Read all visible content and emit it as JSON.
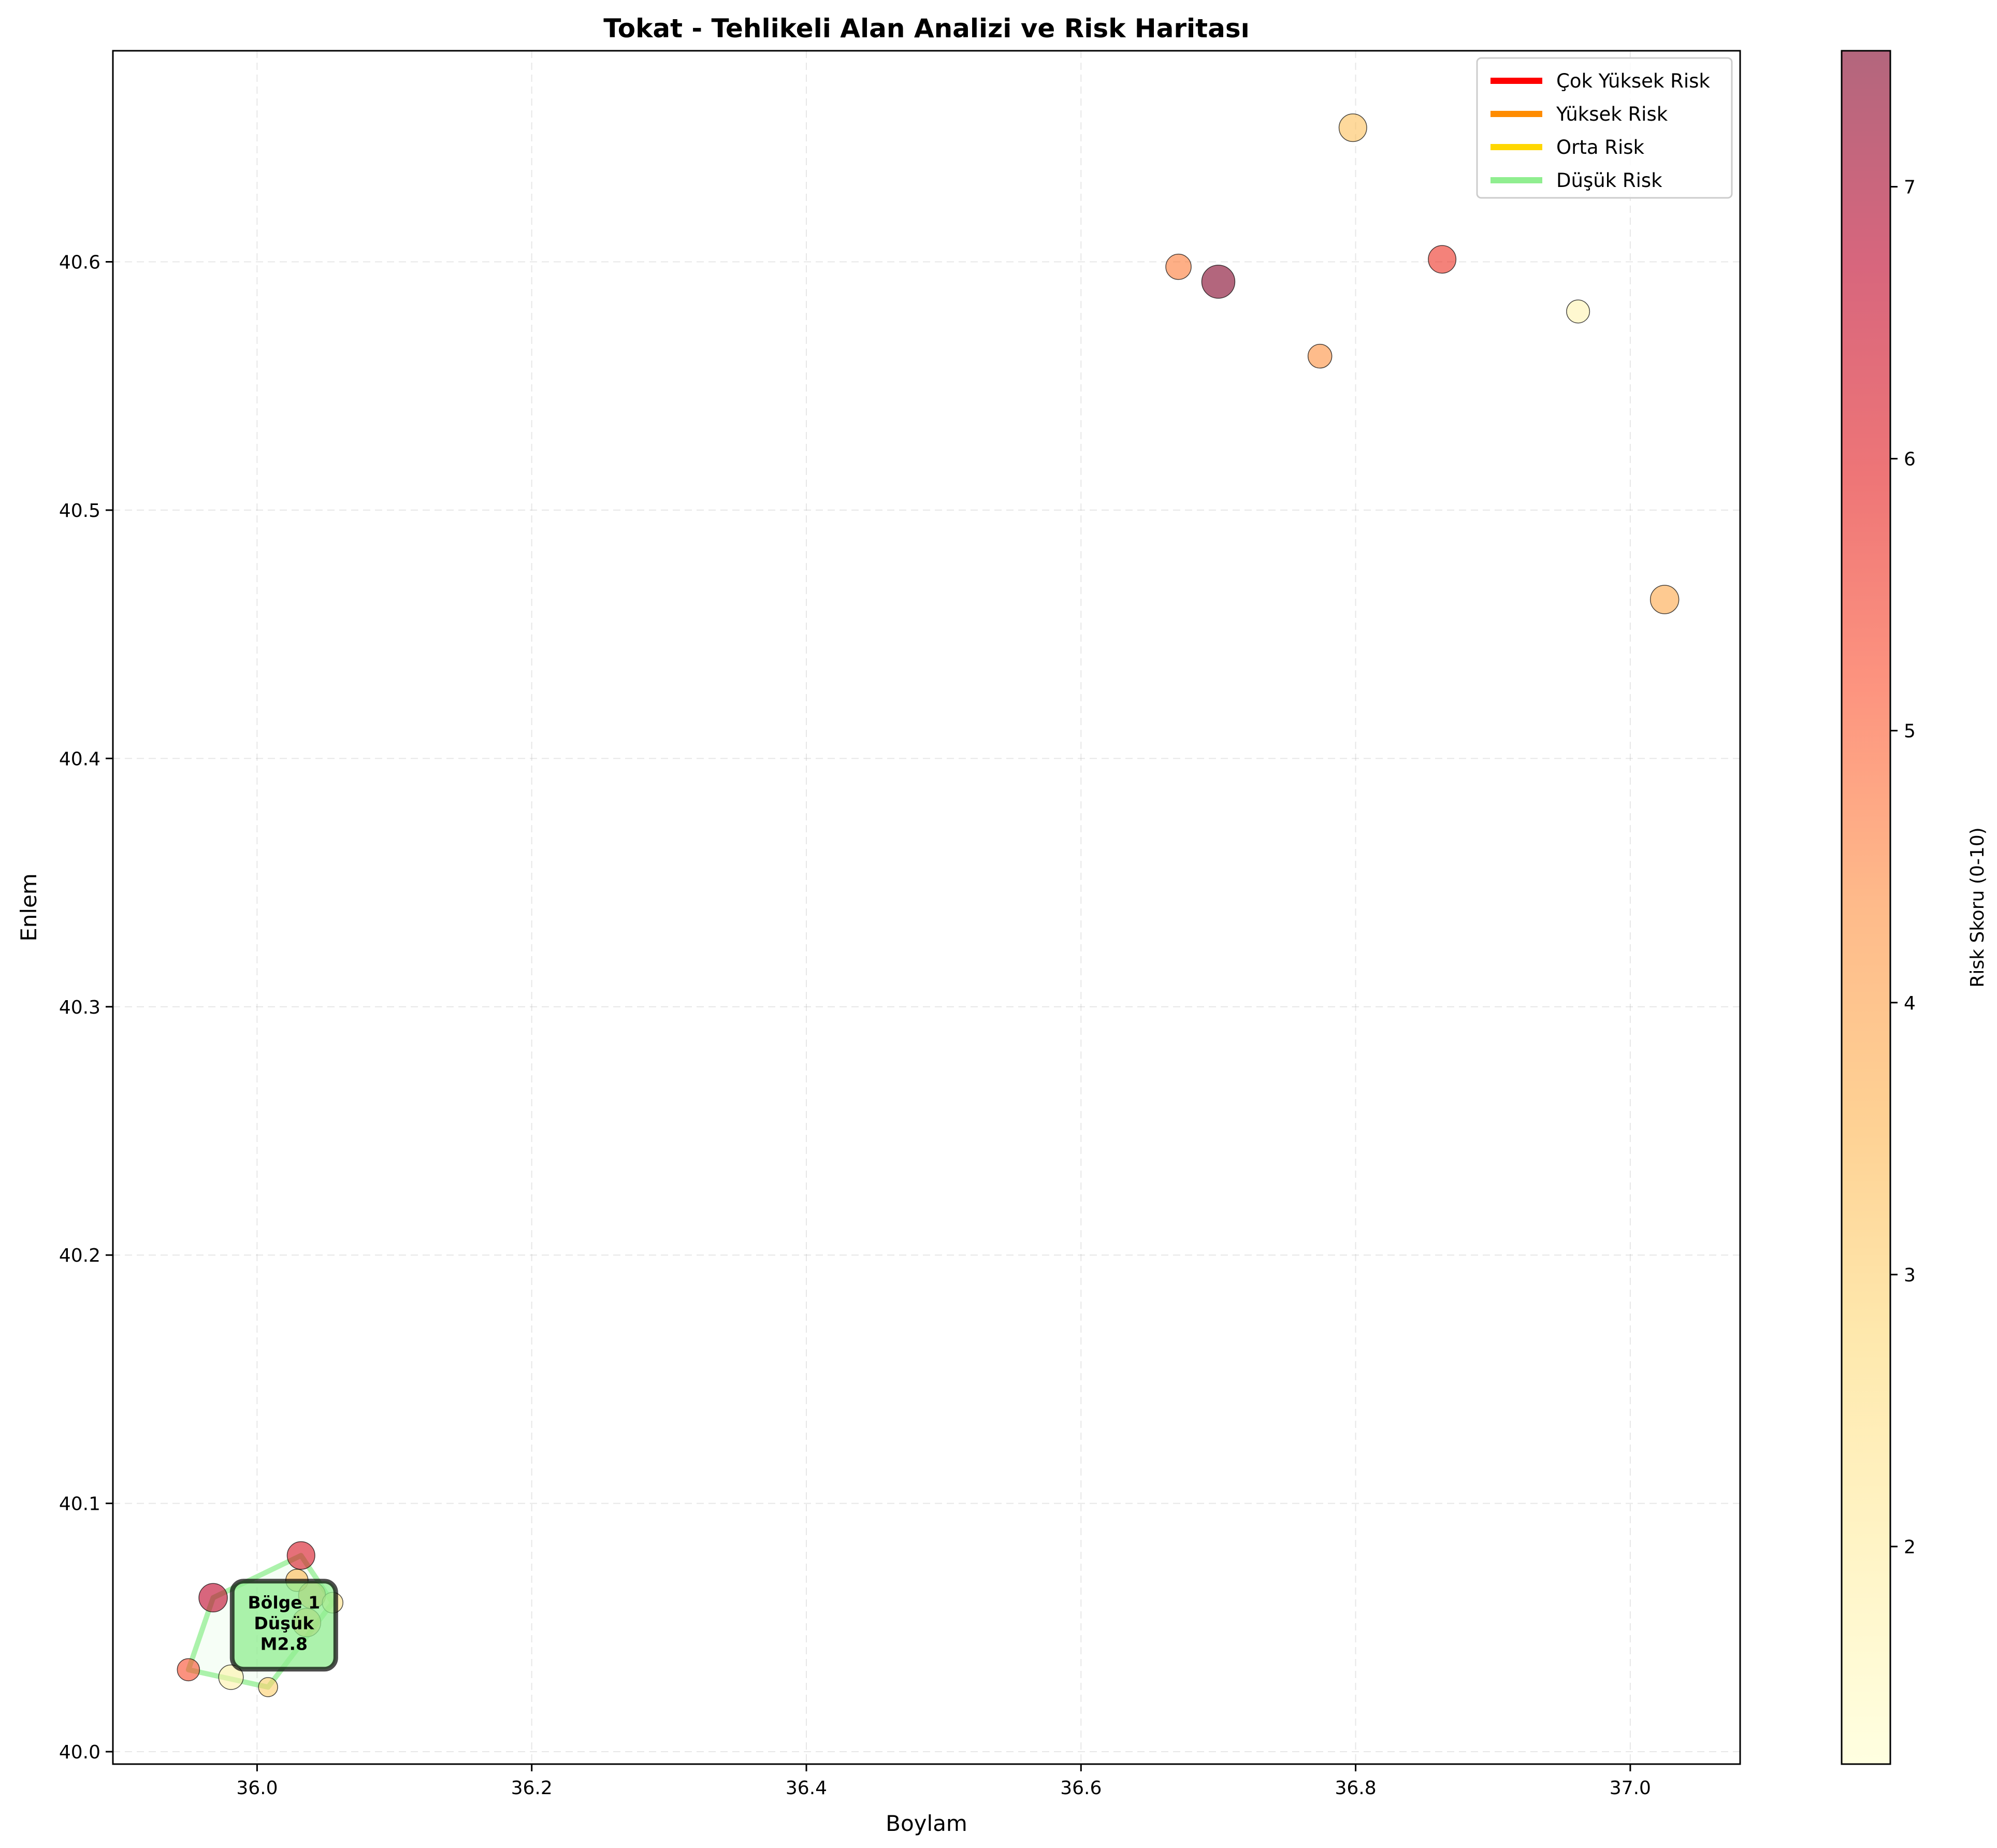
{
  "chart_data": {
    "type": "scatter",
    "title": "Tokat - Tehlikeli Alan Analizi ve Risk Haritası",
    "xlabel": "Boylam",
    "ylabel": "Enlem",
    "xlim": [
      35.895,
      37.08
    ],
    "ylim": [
      39.995,
      40.685
    ],
    "x_ticks": [
      "36.0",
      "36.2",
      "36.4",
      "36.6",
      "36.8",
      "37.0"
    ],
    "x_tick_values": [
      36.0,
      36.2,
      36.4,
      36.6,
      36.8,
      37.0
    ],
    "y_ticks": [
      "40.0",
      "40.1",
      "40.2",
      "40.3",
      "40.4",
      "40.5",
      "40.6"
    ],
    "y_tick_values": [
      40.0,
      40.1,
      40.2,
      40.3,
      40.4,
      40.5,
      40.6
    ],
    "grid": true,
    "legend_position": "top-right",
    "legend": [
      {
        "label": "Çok Yüksek Risk",
        "color": "#ff0000"
      },
      {
        "label": "Yüksek Risk",
        "color": "#ff8c00"
      },
      {
        "label": "Orta Risk",
        "color": "#ffd700"
      },
      {
        "label": "Düşük Risk",
        "color": "#90ee90"
      }
    ],
    "colorbar": {
      "label": "Risk Skoru (0-10)",
      "range": [
        1.2,
        7.5
      ],
      "ticks": [
        "2",
        "3",
        "4",
        "5",
        "6",
        "7"
      ],
      "tick_values": [
        2,
        3,
        4,
        5,
        6,
        7
      ],
      "colormap": "YlOrRd",
      "alpha": 0.6
    },
    "points": [
      {
        "x": 36.798,
        "y": 40.654,
        "risk": 3.3,
        "magnitude": 2.9
      },
      {
        "x": 36.671,
        "y": 40.598,
        "risk": 4.6,
        "magnitude": 2.6
      },
      {
        "x": 36.7,
        "y": 40.592,
        "risk": 7.5,
        "magnitude": 3.6
      },
      {
        "x": 36.863,
        "y": 40.601,
        "risk": 5.6,
        "magnitude": 2.9
      },
      {
        "x": 36.962,
        "y": 40.58,
        "risk": 1.7,
        "magnitude": 2.3
      },
      {
        "x": 36.774,
        "y": 40.562,
        "risk": 4.3,
        "magnitude": 2.4
      },
      {
        "x": 37.025,
        "y": 40.464,
        "risk": 3.8,
        "magnitude": 3.0
      },
      {
        "x": 36.032,
        "y": 40.079,
        "risk": 6.2,
        "magnitude": 2.9
      },
      {
        "x": 35.968,
        "y": 40.062,
        "risk": 6.7,
        "magnitude": 3.0
      },
      {
        "x": 36.029,
        "y": 40.069,
        "risk": 3.5,
        "magnitude": 2.2
      },
      {
        "x": 36.04,
        "y": 40.063,
        "risk": 4.5,
        "magnitude": 2.8
      },
      {
        "x": 36.055,
        "y": 40.06,
        "risk": 2.5,
        "magnitude": 2.0
      },
      {
        "x": 36.036,
        "y": 40.052,
        "risk": 4.0,
        "magnitude": 3.0
      },
      {
        "x": 35.95,
        "y": 40.033,
        "risk": 5.2,
        "magnitude": 2.2
      },
      {
        "x": 35.981,
        "y": 40.03,
        "risk": 1.8,
        "magnitude": 2.5
      },
      {
        "x": 36.008,
        "y": 40.026,
        "risk": 3.0,
        "magnitude": 1.8
      }
    ],
    "zones": [
      {
        "name": "Bölge 1",
        "risk_label": "Düşük",
        "magnitude_label": "M2.8",
        "color": "#90ee90",
        "polygon": [
          [
            35.95,
            40.033
          ],
          [
            36.008,
            40.026
          ],
          [
            36.055,
            40.06
          ],
          [
            36.032,
            40.079
          ],
          [
            35.968,
            40.062
          ]
        ]
      }
    ]
  }
}
